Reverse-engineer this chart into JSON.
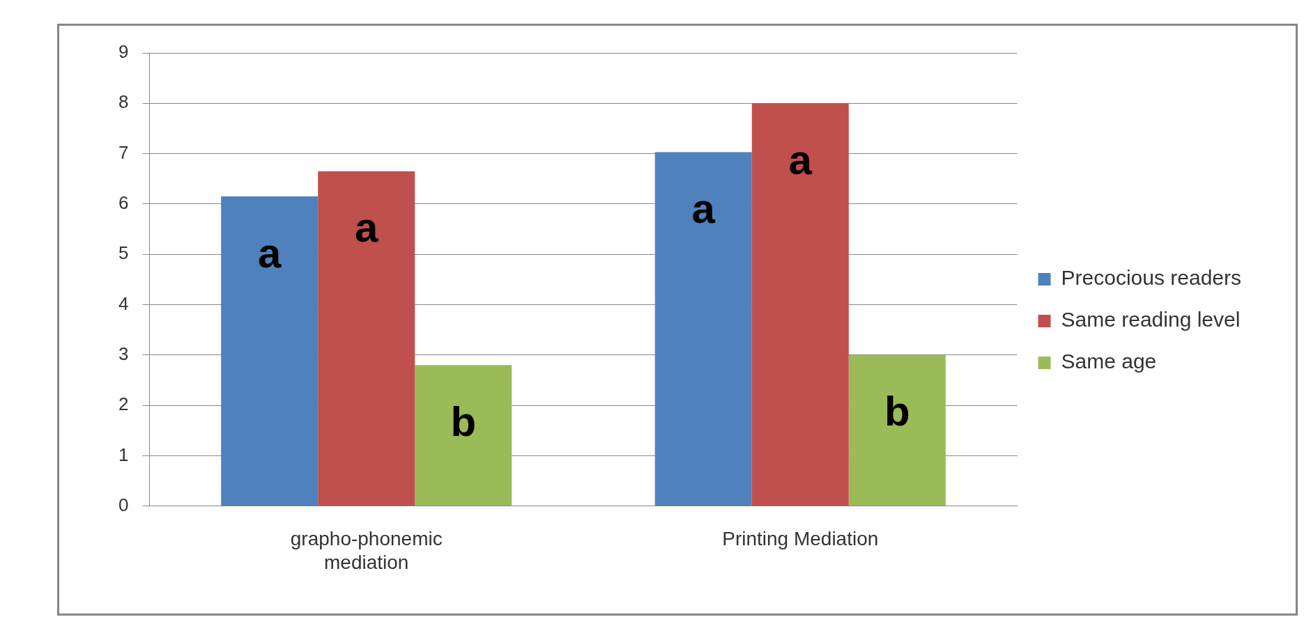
{
  "chart_data": {
    "type": "bar",
    "categories": [
      "grapho-phonemic mediation",
      "Printing Mediation"
    ],
    "series": [
      {
        "name": "Precocious readers",
        "color": "#4f81bd",
        "values": [
          6.15,
          7.03
        ],
        "value_labels": [
          "a",
          "a"
        ]
      },
      {
        "name": "Same reading level",
        "color": "#c0504d",
        "values": [
          6.65,
          8.0
        ],
        "value_labels": [
          "a",
          "a"
        ]
      },
      {
        "name": "Same age",
        "color": "#9bbb59",
        "values": [
          2.8,
          3.0
        ],
        "value_labels": [
          "b",
          "b"
        ]
      }
    ],
    "ylim": [
      0,
      9
    ],
    "yticks": [
      0,
      1,
      2,
      3,
      4,
      5,
      6,
      7,
      8,
      9
    ],
    "grid": "y",
    "legend": "right"
  }
}
